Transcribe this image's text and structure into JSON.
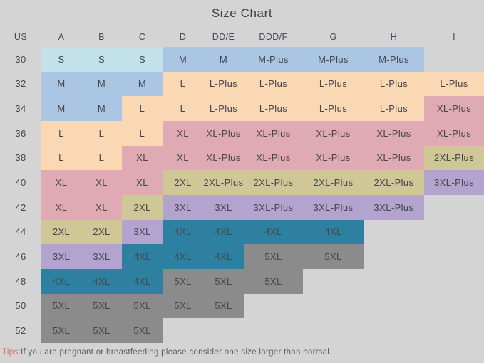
{
  "title": "Size Chart",
  "chart_data": {
    "type": "table",
    "title": "Size Chart",
    "columns": [
      "US",
      "A",
      "B",
      "C",
      "D",
      "DD/E",
      "DDD/F",
      "G",
      "H",
      "I"
    ],
    "rows": [
      [
        "30",
        "S",
        "S",
        "S",
        "M",
        "M",
        "M-Plus",
        "M-Plus",
        "M-Plus",
        ""
      ],
      [
        "32",
        "M",
        "M",
        "M",
        "L",
        "L-Plus",
        "L-Plus",
        "L-Plus",
        "L-Plus",
        "L-Plus"
      ],
      [
        "34",
        "M",
        "M",
        "L",
        "L",
        "L-Plus",
        "L-Plus",
        "L-Plus",
        "L-Plus",
        "XL-Plus"
      ],
      [
        "36",
        "L",
        "L",
        "L",
        "XL",
        "XL-Plus",
        "XL-Plus",
        "XL-Plus",
        "XL-Plus",
        "XL-Plus"
      ],
      [
        "38",
        "L",
        "L",
        "XL",
        "XL",
        "XL-Plus",
        "XL-Plus",
        "XL-Plus",
        "XL-Plus",
        "2XL-Plus"
      ],
      [
        "40",
        "XL",
        "XL",
        "XL",
        "2XL",
        "2XL-Plus",
        "2XL-Plus",
        "2XL-Plus",
        "2XL-Plus",
        "3XL-Plus"
      ],
      [
        "42",
        "XL",
        "XL",
        "2XL",
        "3XL",
        "3XL",
        "3XL-Plus",
        "3XL-Plus",
        "3XL-Plus",
        ""
      ],
      [
        "44",
        "2XL",
        "2XL",
        "3XL",
        "4XL",
        "4XL",
        "4XL",
        "4XL",
        "",
        ""
      ],
      [
        "46",
        "3XL",
        "3XL",
        "4XL",
        "4XL",
        "4XL",
        "5XL",
        "5XL",
        "",
        ""
      ],
      [
        "48",
        "4XL",
        "4XL",
        "4XL",
        "5XL",
        "5XL",
        "5XL",
        "",
        "",
        ""
      ],
      [
        "50",
        "5XL",
        "5XL",
        "5XL",
        "5XL",
        "5XL",
        "",
        "",
        "",
        ""
      ],
      [
        "52",
        "5XL",
        "5XL",
        "5XL",
        "",
        "",
        "",
        "",
        "",
        ""
      ]
    ],
    "legend_note": "cell color encodes base size; '-Plus' variants share the base size color"
  },
  "palette": {
    "S": "#c3e1ea",
    "M": "#abc6e3",
    "L": "#fad8b4",
    "XL": "#e0aab4",
    "2XL": "#cfc795",
    "3XL": "#b2a3cf",
    "4XL": "#2d80a0",
    "5XL": "#8b8b8b",
    "background": "#d4d4d4",
    "text": "#45464d",
    "tips_accent": "#e0716d"
  },
  "tip": {
    "prefix": "Tips:",
    "text": "If you are pregnant or breastfeeding,please consider one size larger than normal."
  }
}
